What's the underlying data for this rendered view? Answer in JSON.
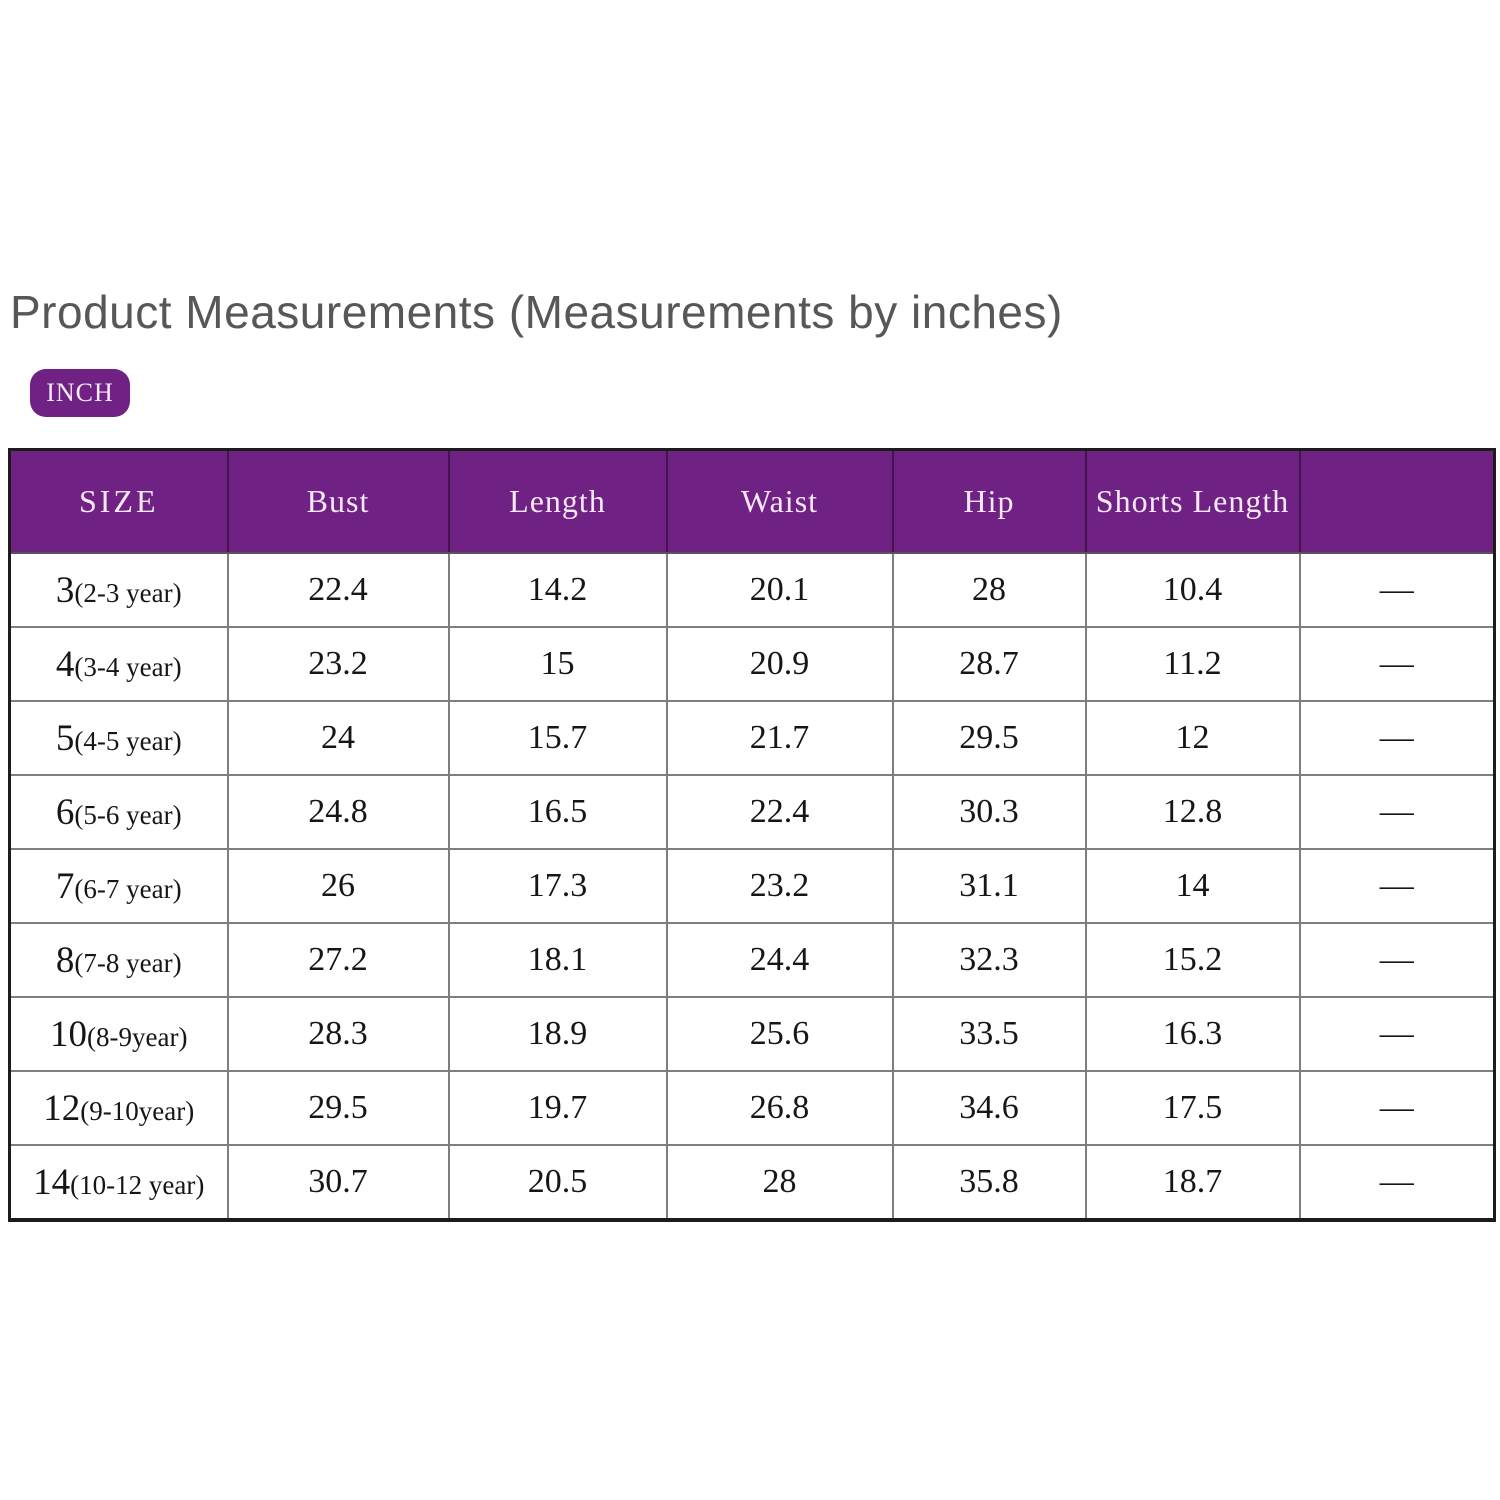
{
  "page": {
    "title": "Product Measurements (Measurements by inches)",
    "unit_badge_label": "INCH"
  },
  "colors": {
    "accent_purple": "#6f2184",
    "title_gray": "#57575a",
    "grid_gray": "#7e7e7e",
    "outer_border": "#1c1c1c",
    "dash_gray": "#9a9a9a",
    "header_text": "#f6e8f6"
  },
  "table": {
    "headers": [
      "SIZE",
      "Bust",
      "Length",
      "Waist",
      "Hip",
      "Shorts Length",
      ""
    ],
    "rows": [
      {
        "size": "3",
        "age": "(2-3 year)",
        "bust": "22.4",
        "length": "14.2",
        "waist": "20.1",
        "hip": "28",
        "shorts_length": "10.4",
        "dash": "—"
      },
      {
        "size": "4",
        "age": "(3-4 year)",
        "bust": "23.2",
        "length": "15",
        "waist": "20.9",
        "hip": "28.7",
        "shorts_length": "11.2",
        "dash": "—"
      },
      {
        "size": "5",
        "age": "(4-5 year)",
        "bust": "24",
        "length": "15.7",
        "waist": "21.7",
        "hip": "29.5",
        "shorts_length": "12",
        "dash": "—"
      },
      {
        "size": "6",
        "age": "(5-6 year)",
        "bust": "24.8",
        "length": "16.5",
        "waist": "22.4",
        "hip": "30.3",
        "shorts_length": "12.8",
        "dash": "—"
      },
      {
        "size": "7",
        "age": "(6-7 year)",
        "bust": "26",
        "length": "17.3",
        "waist": "23.2",
        "hip": "31.1",
        "shorts_length": "14",
        "dash": "—"
      },
      {
        "size": "8",
        "age": "(7-8 year)",
        "bust": "27.2",
        "length": "18.1",
        "waist": "24.4",
        "hip": "32.3",
        "shorts_length": "15.2",
        "dash": "—"
      },
      {
        "size": "10",
        "age": "(8-9year)",
        "bust": "28.3",
        "length": "18.9",
        "waist": "25.6",
        "hip": "33.5",
        "shorts_length": "16.3",
        "dash": "—"
      },
      {
        "size": "12",
        "age": "(9-10year)",
        "bust": "29.5",
        "length": "19.7",
        "waist": "26.8",
        "hip": "34.6",
        "shorts_length": "17.5",
        "dash": "—"
      },
      {
        "size": "14",
        "age": "(10-12 year)",
        "bust": "30.7",
        "length": "20.5",
        "waist": "28",
        "hip": "35.8",
        "shorts_length": "18.7",
        "dash": "—"
      }
    ]
  },
  "chart_data": {
    "type": "table",
    "title": "Product Measurements (Measurements by inches)",
    "unit": "INCH",
    "columns": [
      "SIZE",
      "Bust",
      "Length",
      "Waist",
      "Hip",
      "Shorts Length",
      ""
    ],
    "rows": [
      [
        "3(2-3 year)",
        22.4,
        14.2,
        20.1,
        28,
        10.4,
        "—"
      ],
      [
        "4(3-4 year)",
        23.2,
        15,
        20.9,
        28.7,
        11.2,
        "—"
      ],
      [
        "5(4-5 year)",
        24,
        15.7,
        21.7,
        29.5,
        12,
        "—"
      ],
      [
        "6(5-6 year)",
        24.8,
        16.5,
        22.4,
        30.3,
        12.8,
        "—"
      ],
      [
        "7(6-7 year)",
        26,
        17.3,
        23.2,
        31.1,
        14,
        "—"
      ],
      [
        "8(7-8 year)",
        27.2,
        18.1,
        24.4,
        32.3,
        15.2,
        "—"
      ],
      [
        "10(8-9year)",
        28.3,
        18.9,
        25.6,
        33.5,
        16.3,
        "—"
      ],
      [
        "12(9-10year)",
        29.5,
        19.7,
        26.8,
        34.6,
        17.5,
        "—"
      ],
      [
        "14(10-12 year)",
        30.7,
        20.5,
        28,
        35.8,
        18.7,
        "—"
      ]
    ]
  }
}
